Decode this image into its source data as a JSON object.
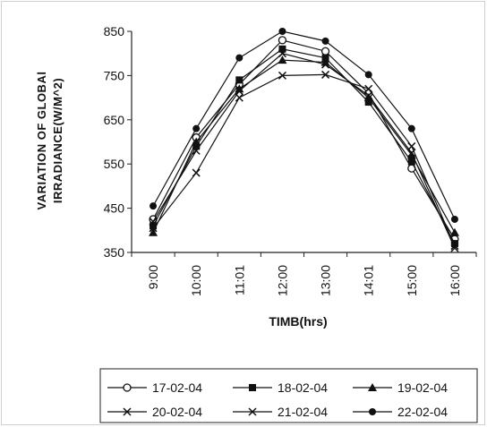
{
  "chart_data": {
    "type": "line",
    "xlabel": "TIMB(hrs)",
    "ylabel_line1": "VARIATION OF GLOBAl",
    "ylabel_line2": "IRRADIANCE(W/M^2)",
    "ylim": [
      350,
      850
    ],
    "yticks": [
      350,
      450,
      550,
      650,
      750,
      850
    ],
    "categories": [
      "9:00",
      "10:00",
      "11:01",
      "12:00",
      "13:00",
      "14:01",
      "15:00",
      "16:00"
    ],
    "grid": false,
    "legend_position": "bottom",
    "series": [
      {
        "name": "17-02-04",
        "marker": "circle-open",
        "values": [
          425,
          610,
          730,
          830,
          805,
          710,
          540,
          380
        ]
      },
      {
        "name": "18-02-04",
        "marker": "square",
        "values": [
          410,
          590,
          740,
          810,
          790,
          690,
          555,
          370
        ]
      },
      {
        "name": "19-02-04",
        "marker": "triangle",
        "values": [
          395,
          600,
          720,
          785,
          780,
          700,
          570,
          395
        ]
      },
      {
        "name": "20-02-04",
        "marker": "x",
        "values": [
          405,
          530,
          700,
          750,
          752,
          720,
          590,
          365
        ]
      },
      {
        "name": "21-02-04",
        "marker": "x",
        "values": [
          420,
          580,
          715,
          800,
          775,
          705,
          575,
          360
        ]
      },
      {
        "name": "22-02-04",
        "marker": "dot",
        "values": [
          455,
          630,
          790,
          850,
          828,
          752,
          630,
          425
        ]
      }
    ]
  }
}
